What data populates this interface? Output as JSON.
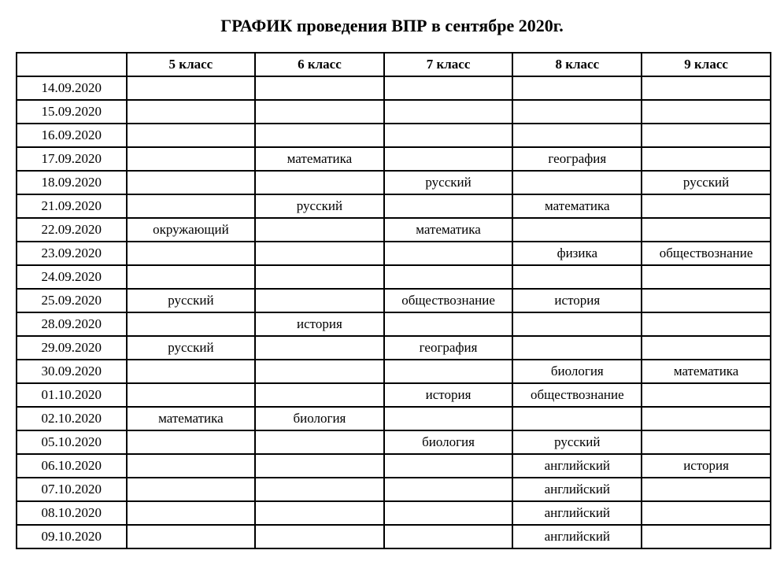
{
  "title": "ГРАФИК проведения ВПР в сентябре 2020г.",
  "table": {
    "columns": [
      "",
      "5 класс",
      "6 класс",
      "7 класс",
      "8 класс",
      "9 класс"
    ],
    "rows": [
      {
        "date": "14.09.2020",
        "cells": [
          "",
          "",
          "",
          "",
          ""
        ]
      },
      {
        "date": "15.09.2020",
        "cells": [
          "",
          "",
          "",
          "",
          ""
        ]
      },
      {
        "date": "16.09.2020",
        "cells": [
          "",
          "",
          "",
          "",
          ""
        ]
      },
      {
        "date": "17.09.2020",
        "cells": [
          "",
          "математика",
          "",
          "география",
          ""
        ]
      },
      {
        "date": "18.09.2020",
        "cells": [
          "",
          "",
          "русский",
          "",
          "русский"
        ]
      },
      {
        "date": "21.09.2020",
        "cells": [
          "",
          "русский",
          "",
          "математика",
          ""
        ]
      },
      {
        "date": "22.09.2020",
        "cells": [
          "окружающий",
          "",
          "математика",
          "",
          ""
        ]
      },
      {
        "date": "23.09.2020",
        "cells": [
          "",
          "",
          "",
          "физика",
          "обществознание"
        ]
      },
      {
        "date": "24.09.2020",
        "cells": [
          "",
          "",
          "",
          "",
          ""
        ]
      },
      {
        "date": "25.09.2020",
        "cells": [
          "русский",
          "",
          "обществознание",
          "история",
          ""
        ]
      },
      {
        "date": "28.09.2020",
        "cells": [
          "",
          "история",
          "",
          "",
          ""
        ]
      },
      {
        "date": "29.09.2020",
        "cells": [
          "русский",
          "",
          "география",
          "",
          ""
        ]
      },
      {
        "date": "30.09.2020",
        "cells": [
          "",
          "",
          "",
          "биология",
          "математика"
        ]
      },
      {
        "date": "01.10.2020",
        "cells": [
          "",
          "",
          "история",
          "обществознание",
          ""
        ]
      },
      {
        "date": "02.10.2020",
        "cells": [
          "математика",
          "биология",
          "",
          "",
          ""
        ]
      },
      {
        "date": "05.10.2020",
        "cells": [
          "",
          "",
          "биология",
          "русский",
          ""
        ]
      },
      {
        "date": "06.10.2020",
        "cells": [
          "",
          "",
          "",
          "английский",
          "история"
        ]
      },
      {
        "date": "07.10.2020",
        "cells": [
          "",
          "",
          "",
          "английский",
          ""
        ]
      },
      {
        "date": "08.10.2020",
        "cells": [
          "",
          "",
          "",
          "английский",
          ""
        ]
      },
      {
        "date": "09.10.2020",
        "cells": [
          "",
          "",
          "",
          "английский",
          ""
        ]
      }
    ]
  },
  "style": {
    "background_color": "#ffffff",
    "border_color": "#000000",
    "text_color": "#000000",
    "font_family": "Times New Roman",
    "title_fontsize": 22,
    "cell_fontsize": 17,
    "border_width": 2
  }
}
